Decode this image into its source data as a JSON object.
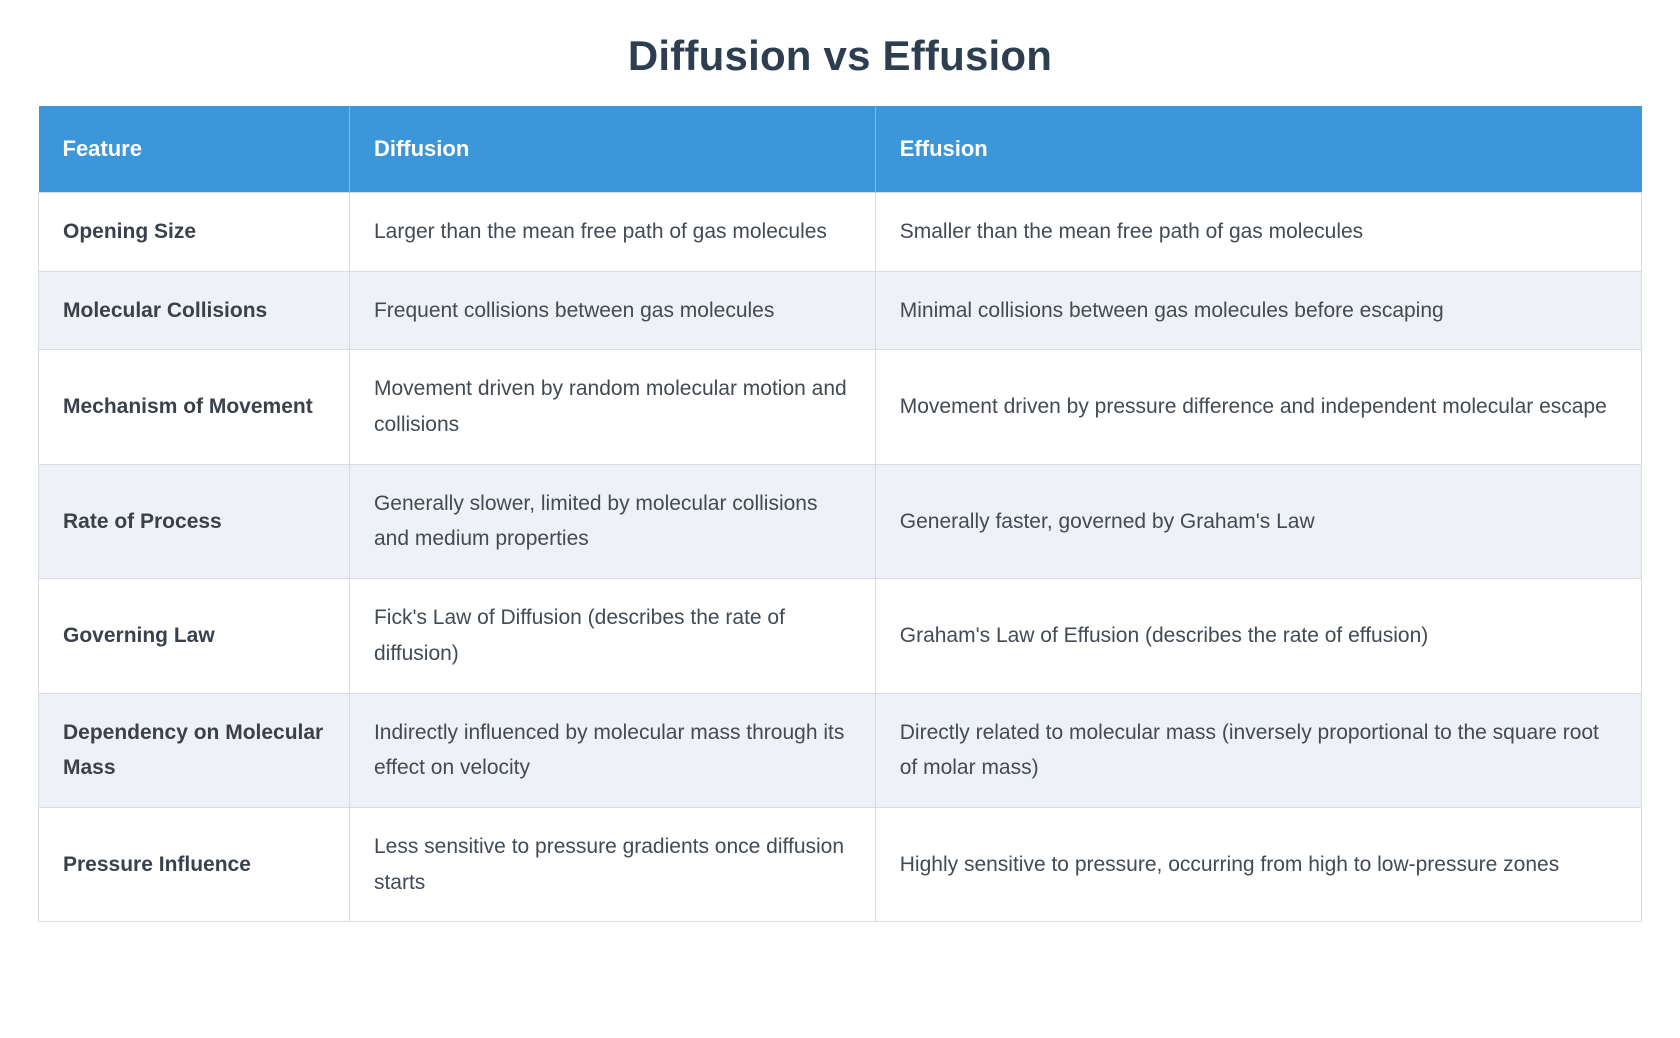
{
  "page": {
    "title": "Diffusion vs Effusion"
  },
  "colors": {
    "header_bg": "#3b97d9",
    "row_alt_bg": "#eef2f7",
    "border": "#d8dce0",
    "title_color": "#2c3e50"
  },
  "table": {
    "headers": {
      "feature": "Feature",
      "diffusion": "Diffusion",
      "effusion": "Effusion"
    },
    "rows": [
      {
        "feature": "Opening Size",
        "diffusion": "Larger than the mean free path of gas molecules",
        "effusion": "Smaller than the mean free path of gas molecules"
      },
      {
        "feature": "Molecular Collisions",
        "diffusion": "Frequent collisions between gas molecules",
        "effusion": "Minimal collisions between gas molecules before escaping"
      },
      {
        "feature": "Mechanism of Movement",
        "diffusion": "Movement driven by random molecular motion and collisions",
        "effusion": "Movement driven by pressure difference and independent molecular escape"
      },
      {
        "feature": "Rate of Process",
        "diffusion": "Generally slower, limited by molecular collisions and medium properties",
        "effusion": "Generally faster, governed by Graham's Law"
      },
      {
        "feature": "Governing Law",
        "diffusion": "Fick's Law of Diffusion (describes the rate of diffusion)",
        "effusion": "Graham's Law of Effusion (describes the rate of effusion)"
      },
      {
        "feature": "Dependency on Molecular Mass",
        "diffusion": "Indirectly influenced by molecular mass through its effect on velocity",
        "effusion": "Directly related to molecular mass (inversely proportional to the square root of molar mass)"
      },
      {
        "feature": "Pressure Influence",
        "diffusion": "Less sensitive to pressure gradients once diffusion starts",
        "effusion": "Highly sensitive to pressure, occurring from high to low-pressure zones"
      }
    ]
  },
  "chart_data": {
    "type": "table",
    "title": "Diffusion vs Effusion",
    "columns": [
      "Feature",
      "Diffusion",
      "Effusion"
    ],
    "rows": [
      [
        "Opening Size",
        "Larger than the mean free path of gas molecules",
        "Smaller than the mean free path of gas molecules"
      ],
      [
        "Molecular Collisions",
        "Frequent collisions between gas molecules",
        "Minimal collisions between gas molecules before escaping"
      ],
      [
        "Mechanism of Movement",
        "Movement driven by random molecular motion and collisions",
        "Movement driven by pressure difference and independent molecular escape"
      ],
      [
        "Rate of Process",
        "Generally slower, limited by molecular collisions and medium properties",
        "Generally faster, governed by Graham's Law"
      ],
      [
        "Governing Law",
        "Fick's Law of Diffusion (describes the rate of diffusion)",
        "Graham's Law of Effusion (describes the rate of effusion)"
      ],
      [
        "Dependency on Molecular Mass",
        "Indirectly influenced by molecular mass through its effect on velocity",
        "Directly related to molecular mass (inversely proportional to the square root of molar mass)"
      ],
      [
        "Pressure Influence",
        "Less sensitive to pressure gradients once diffusion starts",
        "Highly sensitive to pressure, occurring from high to low-pressure zones"
      ]
    ]
  }
}
